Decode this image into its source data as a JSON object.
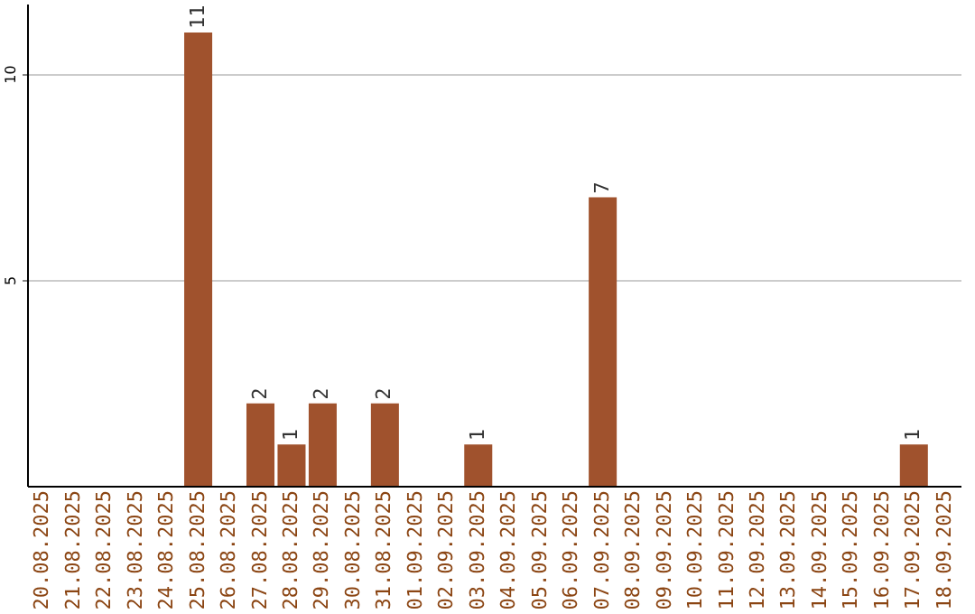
{
  "chart_data": {
    "type": "bar",
    "categories": [
      "20.08.2025",
      "21.08.2025",
      "22.08.2025",
      "23.08.2025",
      "24.08.2025",
      "25.08.2025",
      "26.08.2025",
      "27.08.2025",
      "28.08.2025",
      "29.08.2025",
      "30.08.2025",
      "31.08.2025",
      "01.09.2025",
      "02.09.2025",
      "03.09.2025",
      "04.09.2025",
      "05.09.2025",
      "06.09.2025",
      "07.09.2025",
      "08.09.2025",
      "09.09.2025",
      "10.09.2025",
      "11.09.2025",
      "12.09.2025",
      "13.09.2025",
      "14.09.2025",
      "15.09.2025",
      "16.09.2025",
      "17.09.2025",
      "18.09.2025"
    ],
    "values": [
      0,
      0,
      0,
      0,
      0,
      11,
      0,
      2,
      1,
      2,
      0,
      2,
      0,
      0,
      1,
      0,
      0,
      0,
      7,
      0,
      0,
      0,
      0,
      0,
      0,
      0,
      0,
      0,
      1,
      0
    ],
    "value_labels": [
      null,
      null,
      null,
      null,
      null,
      "11",
      null,
      "2",
      "1",
      "2",
      null,
      "2",
      null,
      null,
      "1",
      null,
      null,
      null,
      "7",
      null,
      null,
      null,
      null,
      null,
      null,
      null,
      null,
      null,
      "1",
      null
    ],
    "color": "#a0522d",
    "ylim": [
      0,
      11.7
    ],
    "yticks": [
      5,
      10
    ],
    "grid": "y"
  }
}
